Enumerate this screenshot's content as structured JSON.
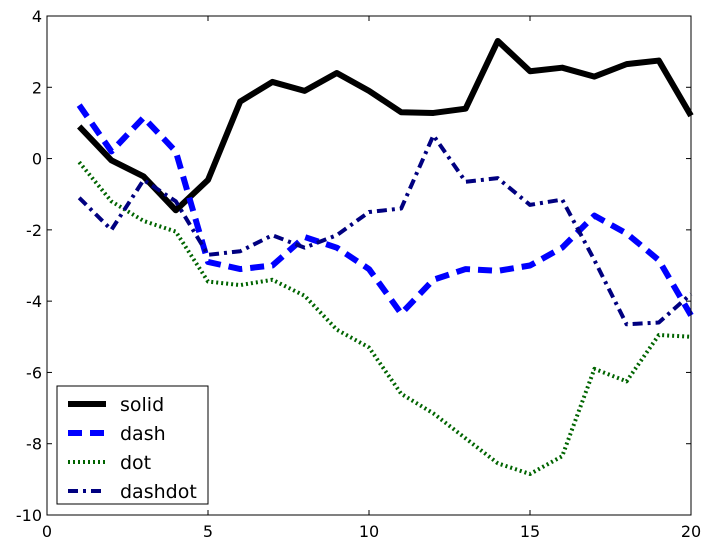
{
  "chart_data": {
    "type": "line",
    "title": "",
    "xlabel": "",
    "ylabel": "",
    "xlim": [
      0,
      20
    ],
    "ylim": [
      -10,
      4
    ],
    "xticks": [
      0,
      5,
      10,
      15,
      20
    ],
    "yticks": [
      -10,
      -8,
      -6,
      -4,
      -2,
      0,
      2,
      4
    ],
    "grid": false,
    "legend_placement": "lower-left",
    "x": [
      1,
      2,
      3,
      4,
      5,
      6,
      7,
      8,
      9,
      10,
      11,
      12,
      13,
      14,
      15,
      16,
      17,
      18,
      19,
      20
    ],
    "series": [
      {
        "name": "solid",
        "color": "#000000",
        "style": "solid",
        "values": [
          0.9,
          -0.05,
          -0.5,
          -1.45,
          -0.6,
          1.6,
          2.15,
          1.9,
          2.4,
          1.9,
          1.3,
          1.28,
          1.4,
          3.3,
          2.45,
          2.55,
          2.3,
          2.65,
          2.75,
          1.2
        ]
      },
      {
        "name": "dash",
        "color": "#0000ff",
        "style": "dash",
        "values": [
          1.5,
          0.2,
          1.15,
          0.2,
          -2.9,
          -3.1,
          -3.0,
          -2.2,
          -2.5,
          -3.1,
          -4.35,
          -3.4,
          -3.1,
          -3.15,
          -3.0,
          -2.5,
          -1.6,
          -2.1,
          -2.85,
          -4.4
        ]
      },
      {
        "name": "dot",
        "color": "#006400",
        "style": "dot",
        "values": [
          -0.1,
          -1.2,
          -1.75,
          -2.05,
          -3.45,
          -3.55,
          -3.4,
          -3.85,
          -4.8,
          -5.3,
          -6.6,
          -7.15,
          -7.85,
          -8.55,
          -8.85,
          -8.35,
          -5.9,
          -6.25,
          -4.95,
          -5.0
        ]
      },
      {
        "name": "dashdot",
        "color": "#000080",
        "style": "dashdot",
        "values": [
          -1.1,
          -2.0,
          -0.6,
          -1.2,
          -2.7,
          -2.6,
          -2.15,
          -2.5,
          -2.15,
          -1.5,
          -1.4,
          0.65,
          -0.65,
          -0.55,
          -1.3,
          -1.15,
          -2.85,
          -4.65,
          -4.6,
          -3.8
        ]
      }
    ]
  }
}
